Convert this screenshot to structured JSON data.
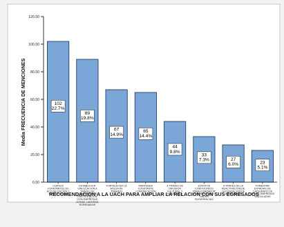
{
  "chart_data": {
    "type": "bar",
    "title": "",
    "xlabel": "RECOMENDACION A LA UACH PARA AMPLIAR LA RELACION CON SUS EGRESADOS",
    "ylabel": "Media FRECUENCIA DE MENCIONES",
    "ylim": [
      0,
      120
    ],
    "yticks": [
      "0.00",
      "20.00",
      "40.00",
      "60.00",
      "80.00",
      "100.00",
      "120.00"
    ],
    "grid": false,
    "legend": "none",
    "bar_color": "#7ba7d8",
    "bar_edge_color": "#1f3d6b",
    "categories": [
      [
        "CURSOS",
        "CONSTANTES DE",
        "ACTUALIZACION Y",
        "CAPACITACION"
      ],
      [
        "ESTABLECER",
        "VINCULACION A",
        "TRAVES DE",
        "CONVENIOS DE",
        "PARTICIPACION",
        "CON EMPRESAS",
        "DONDE LABORAN",
        "EGRESADOS"
      ],
      [
        "FORTALECER LA",
        "BOLSA DE",
        "TRABAJO"
      ],
      [
        "MANTENER",
        "CONSTANTE",
        "COMUNICACION"
      ],
      [
        "A TRAVES DE",
        "DIFUSION",
        "CULTURAL Y",
        "ACADEMICA"
      ],
      [
        "EVENTOS",
        "CONVOCADOS",
        "PARA COMPARTIR",
        "EXPERIENCIAS Y",
        "HACER",
        "SUGERENCIAS"
      ],
      [
        "A TRAVES DE LA",
        "REACTIVACION DE",
        "LA FUNDACION DE",
        "EGRESADOS"
      ],
      [
        "FOMENTAR",
        "ESTADIAS DE",
        "CATEDRATICOS",
        "EN LAS EMPRESAS",
        "VINCULADAS"
      ]
    ],
    "values": [
      102,
      89,
      67,
      65,
      44,
      33,
      27,
      23
    ],
    "data_labels": [
      [
        "102",
        "22.7%"
      ],
      [
        "89",
        "19.8%"
      ],
      [
        "67",
        "14.9%"
      ],
      [
        "65",
        "14.4%"
      ],
      [
        "44",
        "9.8%"
      ],
      [
        "33",
        "7.3%"
      ],
      [
        "27",
        "6.0%"
      ],
      [
        "23",
        "5.1%"
      ]
    ]
  }
}
